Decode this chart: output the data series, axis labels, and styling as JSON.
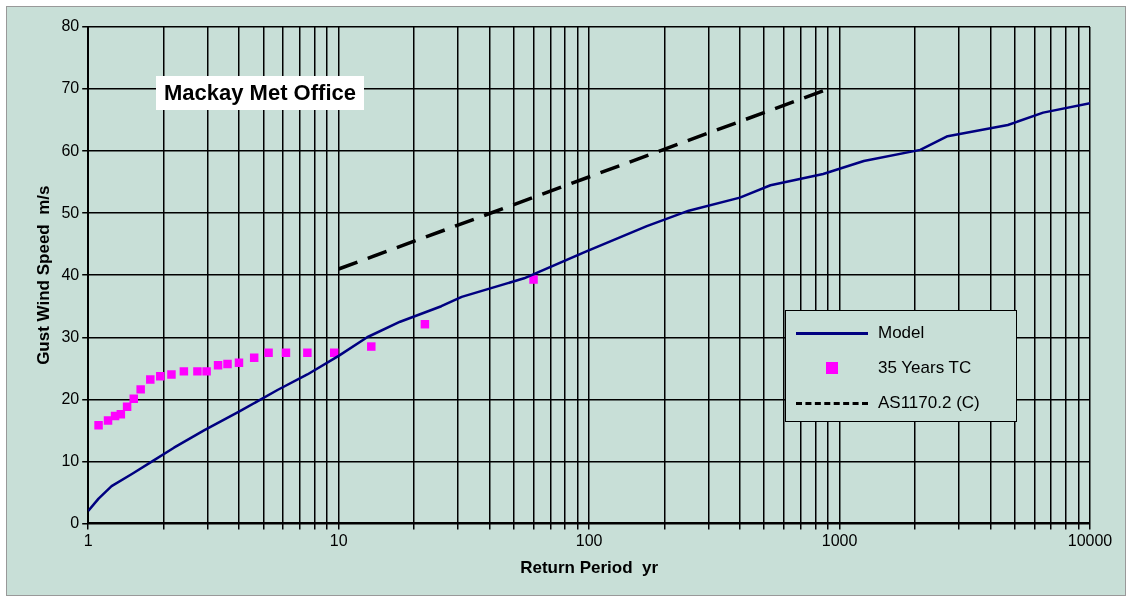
{
  "chart_data": {
    "type": "line",
    "title": "Mackay Met Office",
    "xlabel": "Return Period  yr",
    "ylabel": "Gust Wind Speed  m/s",
    "log": "x",
    "grid": true,
    "legend": "right",
    "xlim": [
      1,
      10000
    ],
    "ylim": [
      0,
      80
    ],
    "xticks": [
      1,
      {
        "value": 2,
        "label": null
      },
      {
        "value": 3,
        "label": null
      },
      {
        "value": 4,
        "label": null
      },
      {
        "value": 5,
        "label": null
      },
      {
        "value": 6,
        "label": null
      },
      {
        "value": 7,
        "label": null
      },
      {
        "value": 8,
        "label": null
      },
      {
        "value": 9,
        "label": null
      },
      10,
      {
        "value": 20,
        "label": null
      },
      {
        "value": 30,
        "label": null
      },
      {
        "value": 40,
        "label": null
      },
      {
        "value": 50,
        "label": null
      },
      {
        "value": 60,
        "label": null
      },
      {
        "value": 70,
        "label": null
      },
      {
        "value": 80,
        "label": null
      },
      {
        "value": 90,
        "label": null
      },
      100,
      {
        "value": 200,
        "label": null
      },
      {
        "value": 300,
        "label": null
      },
      {
        "value": 400,
        "label": null
      },
      {
        "value": 500,
        "label": null
      },
      {
        "value": 600,
        "label": null
      },
      {
        "value": 700,
        "label": null
      },
      {
        "value": 800,
        "label": null
      },
      {
        "value": 900,
        "label": null
      },
      1000,
      {
        "value": 2000,
        "label": null
      },
      {
        "value": 3000,
        "label": null
      },
      {
        "value": 4000,
        "label": null
      },
      {
        "value": 5000,
        "label": null
      },
      {
        "value": 6000,
        "label": null
      },
      {
        "value": 7000,
        "label": null
      },
      {
        "value": 8000,
        "label": null
      },
      {
        "value": 9000,
        "label": null
      },
      10000
    ],
    "yticks": [
      0,
      10,
      20,
      30,
      40,
      50,
      60,
      70,
      80
    ],
    "series": [
      {
        "name": "Model",
        "marker": "none",
        "line_style": "solid",
        "color": "#000080",
        "x": [
          1,
          1.1,
          1.24,
          1.5,
          1.8,
          2.2,
          2.9,
          4,
          5.7,
          7.5,
          10,
          13,
          17.6,
          25.7,
          31,
          55,
          97,
          170,
          250,
          400,
          530,
          860,
          1250,
          2100,
          2700,
          4700,
          6500,
          10000
        ],
        "values": [
          2,
          4,
          6,
          8,
          10,
          12.2,
          15,
          18,
          21.5,
          24,
          27,
          30,
          32.5,
          35,
          36.5,
          39.5,
          43.8,
          47.9,
          50.4,
          52.5,
          54.5,
          56.3,
          58.4,
          60.2,
          62.4,
          64.2,
          66.2,
          67.7
        ]
      },
      {
        "name": "35 Years TC",
        "type": "scatter",
        "marker": "square",
        "color": "#ff00ff",
        "x": [
          1.1,
          1.2,
          1.28,
          1.35,
          1.43,
          1.52,
          1.62,
          1.77,
          1.94,
          2.15,
          2.41,
          2.73,
          2.97,
          3.3,
          3.6,
          4,
          4.6,
          5.25,
          6.16,
          7.5,
          9.6,
          13.5,
          22.1,
          60
        ],
        "values": [
          15.8,
          16.6,
          17.3,
          17.6,
          18.8,
          20.1,
          21.6,
          23.2,
          23.7,
          24,
          24.5,
          24.5,
          24.5,
          25.5,
          25.7,
          25.9,
          26.7,
          27.5,
          27.5,
          27.5,
          27.5,
          28.5,
          32.1,
          39.3
        ]
      },
      {
        "name": "AS1170.2 (C)",
        "marker": "none",
        "line_style": "dashed",
        "color": "#000000",
        "x": [
          10,
          900
        ],
        "values": [
          41,
          70
        ]
      }
    ]
  }
}
